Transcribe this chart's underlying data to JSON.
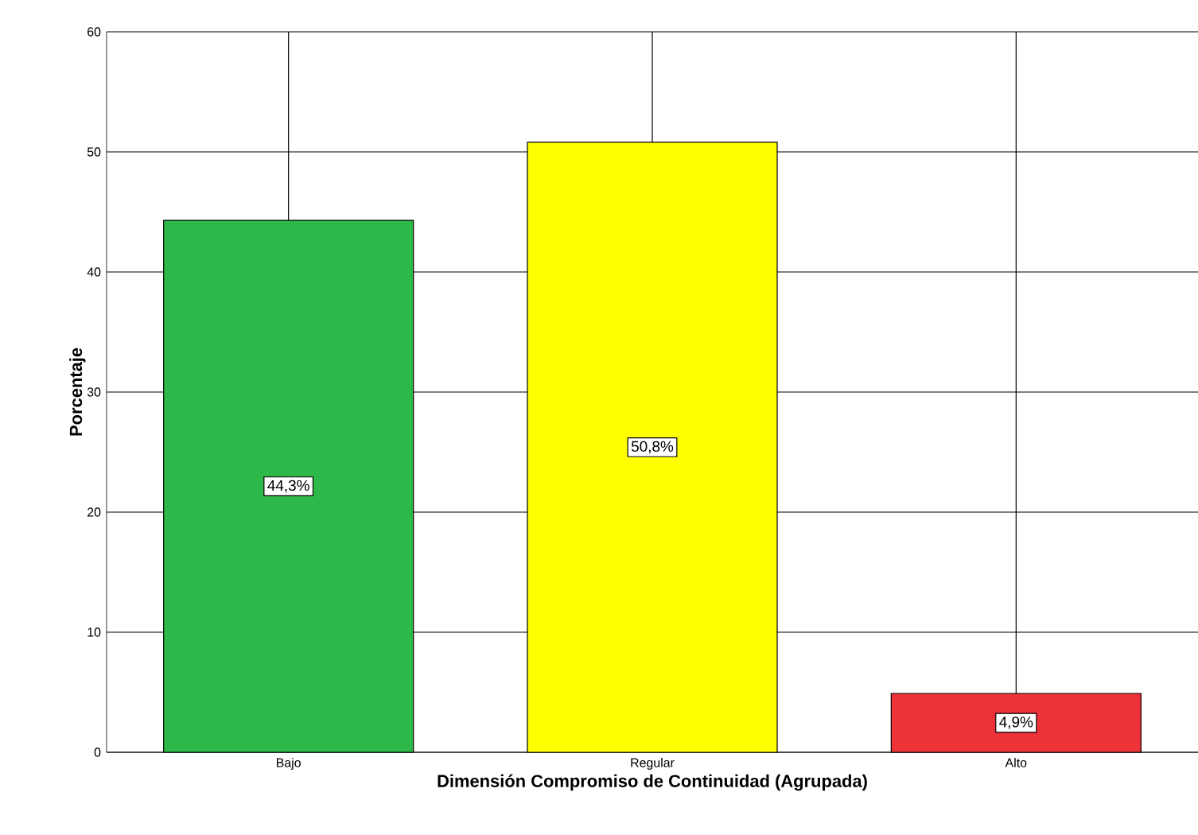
{
  "chart_data": {
    "type": "bar",
    "xlabel": "Dimensión Compromiso de Continuidad (Agrupada)",
    "ylabel": "Porcentaje",
    "categories": [
      "Bajo",
      "Regular",
      "Alto"
    ],
    "values": [
      44.3,
      50.8,
      4.9
    ],
    "colors": [
      "#2eb84a",
      "#ffff00",
      "#ee3338"
    ],
    "value_labels": [
      "44,3%",
      "50,8%",
      "4,9%"
    ],
    "ylim": [
      0,
      60
    ],
    "yticks": [
      0,
      10,
      20,
      30,
      40,
      50,
      60
    ],
    "grid": true
  }
}
